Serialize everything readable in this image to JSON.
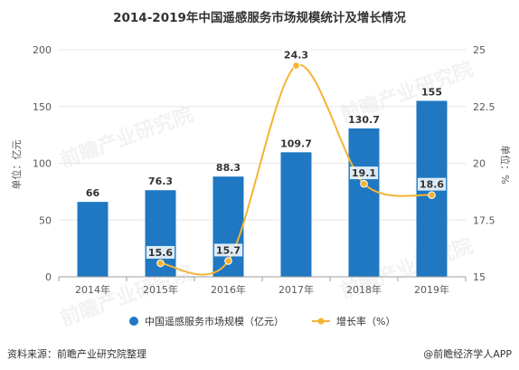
{
  "colors": {
    "bar": "#1f78c1",
    "line": "#f5b335",
    "point_label_bg": "#ffffff",
    "grid": "#e6e6e6",
    "axis": "#9e9e9e",
    "text": "#333333"
  },
  "footer": {
    "source": "资料来源：前瞻产业研究院整理",
    "brand": "@前瞻经济学人APP"
  },
  "watermark": "前瞻产业研究院",
  "chart_data": {
    "type": "bar",
    "title": "2014-2019年中国遥感服务市场规模统计及增长情况",
    "categories": [
      "2014年",
      "2015年",
      "2016年",
      "2017年",
      "2018年",
      "2019年"
    ],
    "series": [
      {
        "name": "中国遥感服务市场规模（亿元）",
        "type": "bar",
        "axis": "left",
        "values": [
          66,
          76.3,
          88.3,
          109.7,
          130.7,
          155
        ],
        "labels": [
          "66",
          "76.3",
          "88.3",
          "109.7",
          "130.7",
          "155"
        ]
      },
      {
        "name": "增长率（%）",
        "type": "line",
        "axis": "right",
        "values": [
          null,
          15.6,
          15.7,
          24.3,
          19.1,
          18.6
        ],
        "labels": [
          "",
          "15.6",
          "15.7",
          "24.3",
          "19.1",
          "18.6"
        ]
      }
    ],
    "y_left": {
      "label": "单位：亿元",
      "ylim": [
        0,
        200
      ],
      "ticks": [
        0,
        50,
        100,
        150,
        200
      ],
      "tick_labels": [
        "0",
        "50",
        "100",
        "150",
        "200"
      ]
    },
    "y_right": {
      "label": "单位：%",
      "ylim": [
        15,
        25
      ],
      "ticks": [
        15,
        17.5,
        20,
        22.5,
        25
      ],
      "tick_labels": [
        "15",
        "17.5",
        "20",
        "22.5",
        "25"
      ]
    },
    "grid": true,
    "legend_position": "bottom"
  }
}
